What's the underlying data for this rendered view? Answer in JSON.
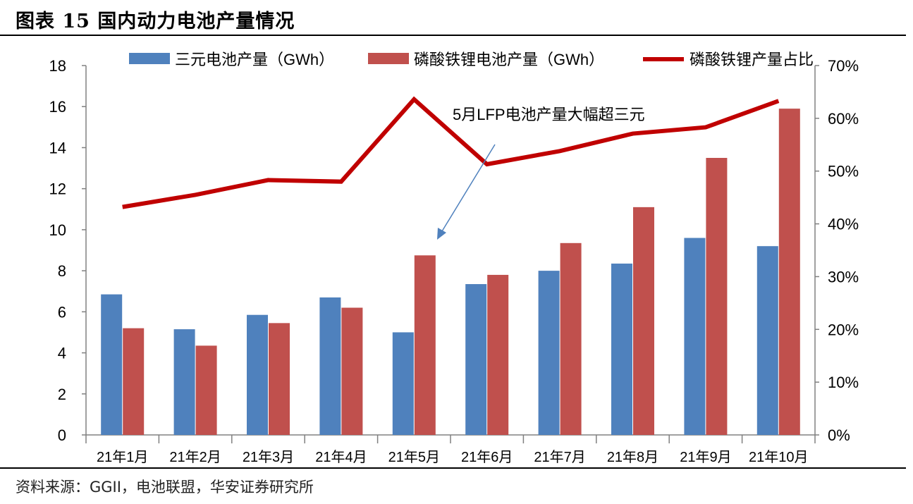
{
  "figure_title": "图表 15 国内动力电池产量情况",
  "source": "资料来源：GGII，电池联盟，华安证券研究所",
  "colors": {
    "series_a": "#4F81BD",
    "series_b": "#C0504D",
    "line": "#C00000",
    "annotation_arrow": "#4F81BD",
    "axis": "#808080"
  },
  "chart_data": {
    "type": "bar",
    "title": "",
    "categories": [
      "21年1月",
      "21年2月",
      "21年3月",
      "21年4月",
      "21年5月",
      "21年6月",
      "21年7月",
      "21年8月",
      "21年9月",
      "21年10月"
    ],
    "series": [
      {
        "name": "三元电池产量（GWh）",
        "type": "bar",
        "axis": "left",
        "values": [
          6.85,
          5.15,
          5.85,
          6.7,
          5.0,
          7.35,
          8.0,
          8.35,
          9.6,
          9.2
        ]
      },
      {
        "name": "磷酸铁锂电池产量（GWh）",
        "type": "bar",
        "axis": "left",
        "values": [
          5.2,
          4.35,
          5.45,
          6.2,
          8.75,
          7.8,
          9.35,
          11.1,
          13.5,
          15.9
        ]
      },
      {
        "name": "磷酸铁锂产量占比",
        "type": "line",
        "axis": "right",
        "values": [
          43.2,
          45.5,
          48.3,
          48.0,
          63.6,
          51.3,
          53.8,
          57.1,
          58.3,
          63.3
        ]
      }
    ],
    "left_axis": {
      "min": 0,
      "max": 18,
      "step": 2,
      "ticks": [
        "0",
        "2",
        "4",
        "6",
        "8",
        "10",
        "12",
        "14",
        "16",
        "18"
      ]
    },
    "right_axis": {
      "min": 0,
      "max": 70,
      "step": 10,
      "ticks": [
        "0%",
        "10%",
        "20%",
        "30%",
        "40%",
        "50%",
        "60%",
        "70%"
      ]
    },
    "legend_position": "top",
    "annotation": {
      "text": "5月LFP电池产量大幅超三元",
      "points_to_category": "21年5月"
    }
  }
}
